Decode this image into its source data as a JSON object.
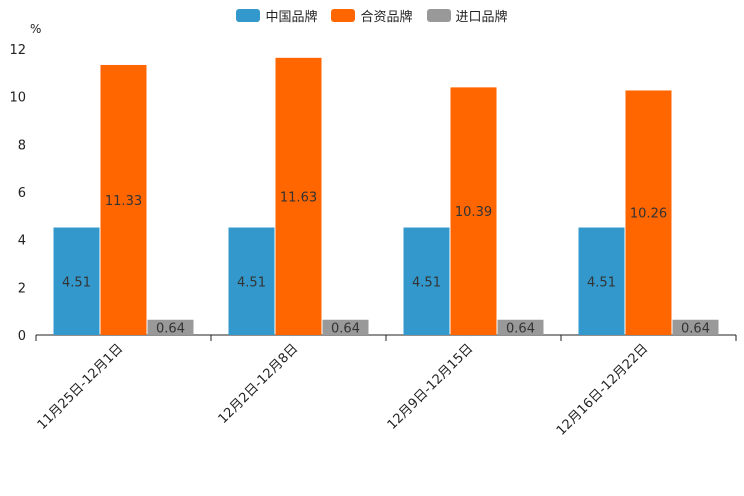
{
  "chart_data": {
    "type": "bar",
    "unit_label": "%",
    "categories": [
      "11月25日-12月1日",
      "12月2日-12月8日",
      "12月9日-12月15日",
      "12月16日-12月22日"
    ],
    "series": [
      {
        "name": "中国品牌",
        "color": "#3399cc",
        "values": [
          4.51,
          4.51,
          4.51,
          4.51
        ],
        "labels": [
          "4.51",
          "4.51",
          "4.51",
          "4.51"
        ]
      },
      {
        "name": "合资品牌",
        "color": "#ff6600",
        "values": [
          11.33,
          11.63,
          10.39,
          10.26
        ],
        "labels": [
          "11.33",
          "11.63",
          "10.39",
          "10.26"
        ]
      },
      {
        "name": "进口品牌",
        "color": "#999999",
        "values": [
          0.64,
          0.64,
          0.64,
          0.64
        ],
        "labels": [
          "0.64",
          "0.64",
          "0.64",
          "0.64"
        ]
      }
    ],
    "ylim": [
      0,
      12
    ],
    "yticks": [
      0,
      2,
      4,
      6,
      8,
      10,
      12
    ],
    "ytick_labels": [
      "0",
      "2",
      "4",
      "6",
      "8",
      "10",
      "12"
    ],
    "legend_position": "top-center"
  }
}
